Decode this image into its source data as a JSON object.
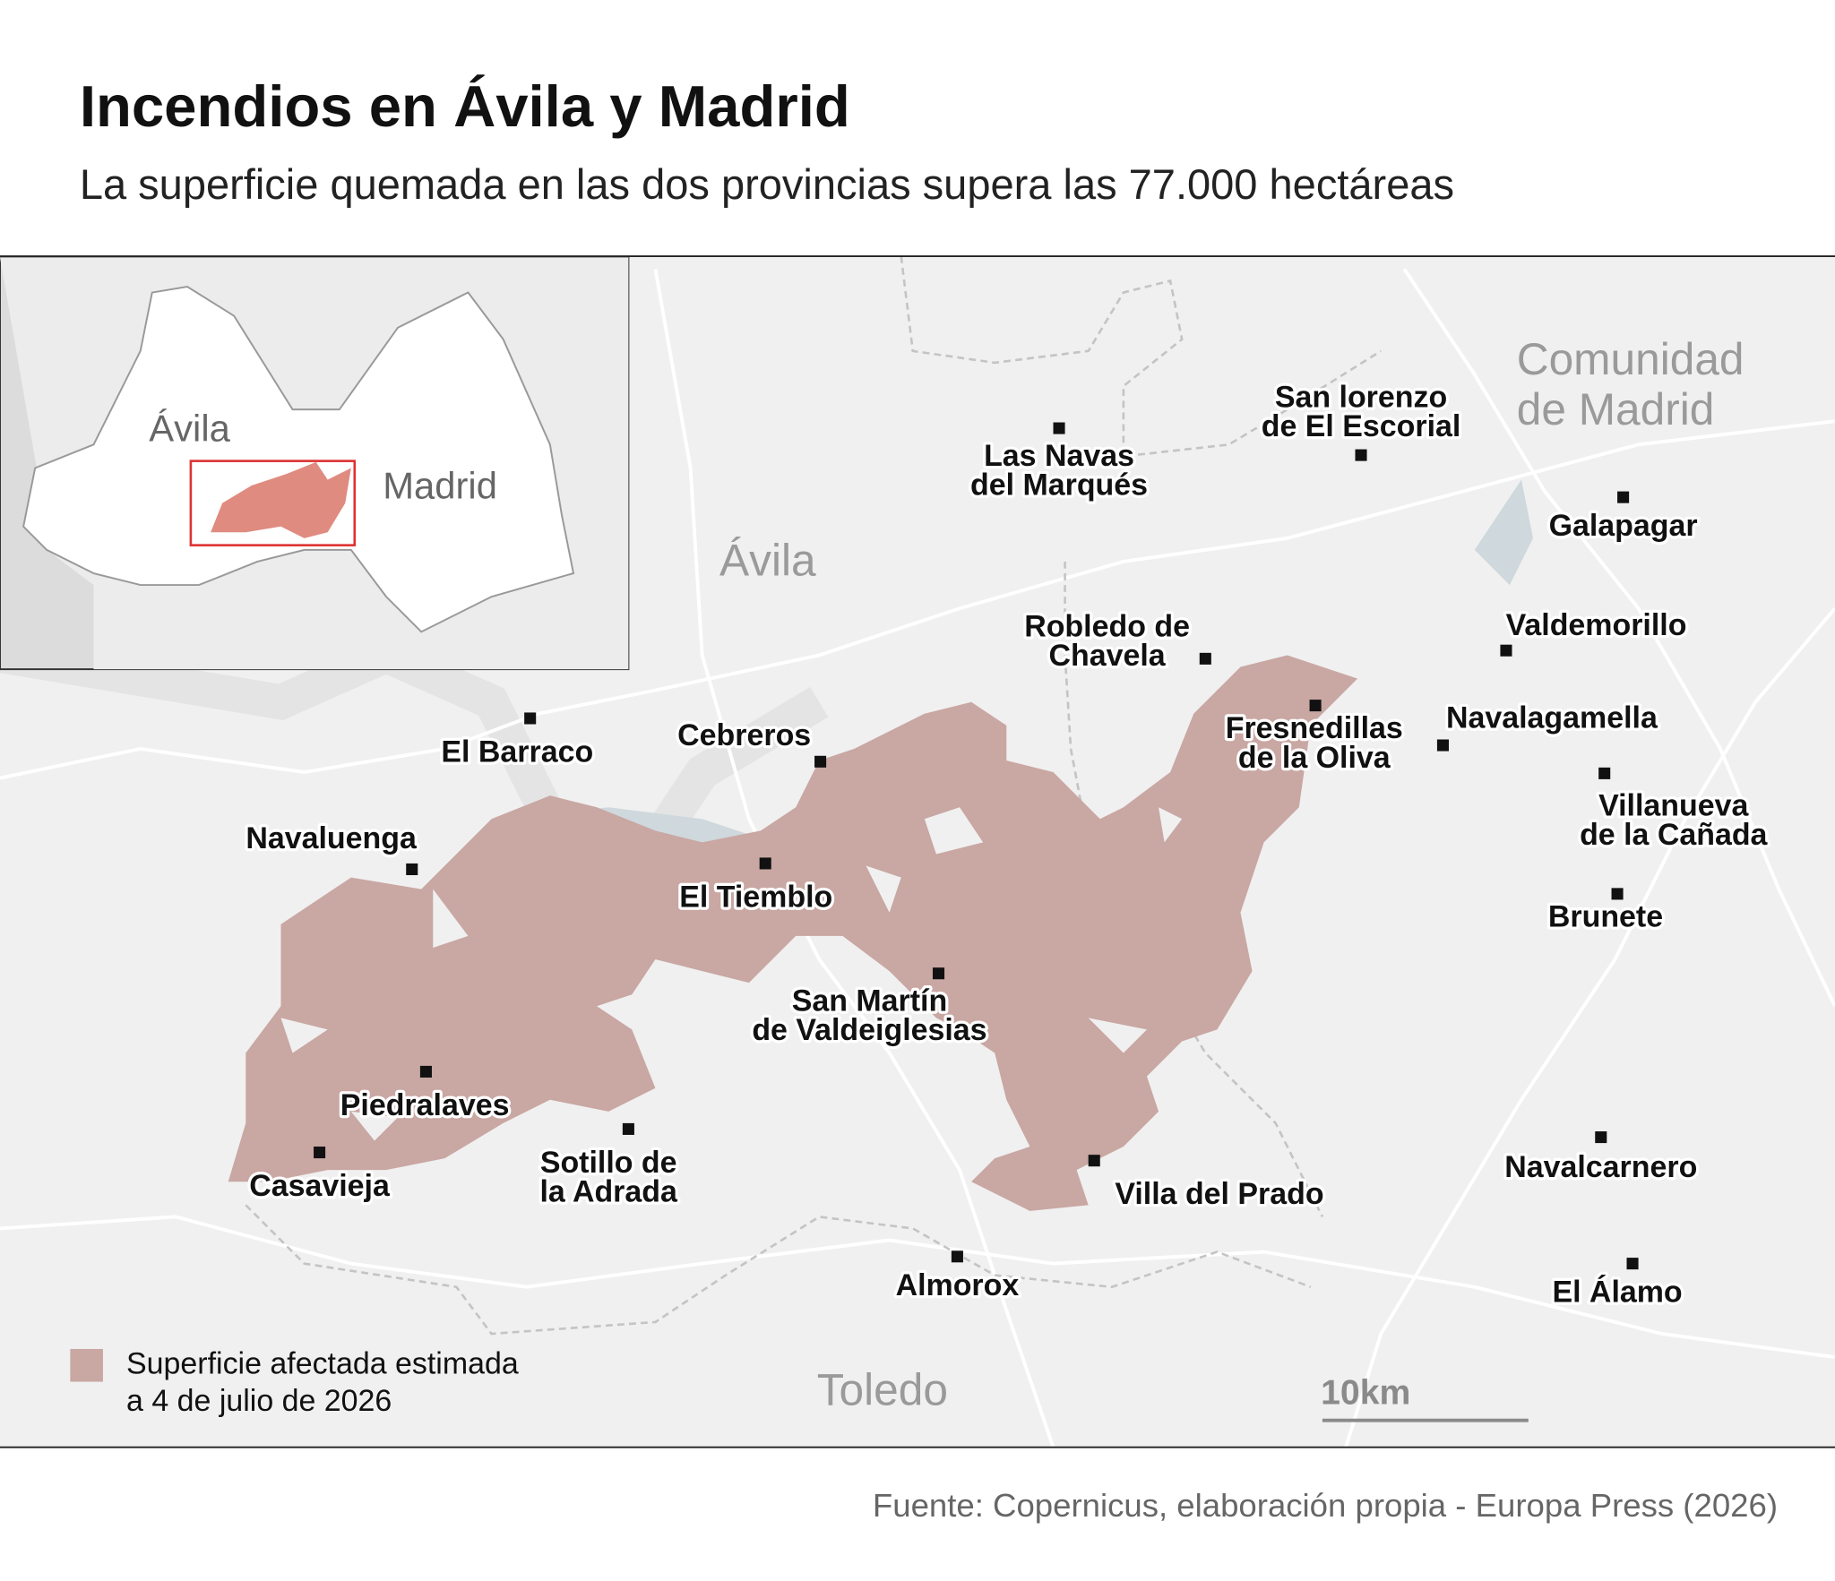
{
  "header": {
    "title": "Incendios en Ávila y Madrid",
    "subtitle": "La superficie quemada en las dos provincias supera las 77.000 hectáreas"
  },
  "map": {
    "regions": [
      [
        "Ávila"
      ],
      [
        "Comunidad",
        "de Madrid"
      ],
      [
        "Toledo"
      ]
    ],
    "towns": [
      {
        "label": [
          "Las Navas",
          "del Marqués"
        ]
      },
      {
        "label": [
          "San lorenzo",
          "de El Escorial"
        ]
      },
      {
        "label": [
          "Galapagar"
        ]
      },
      {
        "label": [
          "Robledo de",
          "Chavela"
        ]
      },
      {
        "label": [
          "Valdemorillo"
        ]
      },
      {
        "label": [
          "Fresnedillas",
          "de la Oliva"
        ]
      },
      {
        "label": [
          "Navalagamella"
        ]
      },
      {
        "label": [
          "Villanueva",
          "de la Cañada"
        ]
      },
      {
        "label": [
          "Brunete"
        ]
      },
      {
        "label": [
          "El Barraco"
        ]
      },
      {
        "label": [
          "Cebreros"
        ]
      },
      {
        "label": [
          "Navaluenga"
        ]
      },
      {
        "label": [
          "El Tiemblo"
        ]
      },
      {
        "label": [
          "San Martín",
          "de Valdeiglesias"
        ]
      },
      {
        "label": [
          "Piedralaves"
        ]
      },
      {
        "label": [
          "Casavieja"
        ]
      },
      {
        "label": [
          "Sotillo de",
          "la Adrada"
        ]
      },
      {
        "label": [
          "Villa del Prado"
        ]
      },
      {
        "label": [
          "Almorox"
        ]
      },
      {
        "label": [
          "Navalcarnero"
        ]
      },
      {
        "label": [
          "El Álamo"
        ]
      }
    ],
    "inset": {
      "regions": [
        "Ávila",
        "Madrid"
      ]
    },
    "legend": {
      "label": [
        "Superficie afectada estimada",
        "a 4 de julio de 2026"
      ]
    },
    "scale": "10km"
  },
  "footer": {
    "source": "Fuente: Copernicus, elaboración propia - Europa Press (2026)"
  }
}
